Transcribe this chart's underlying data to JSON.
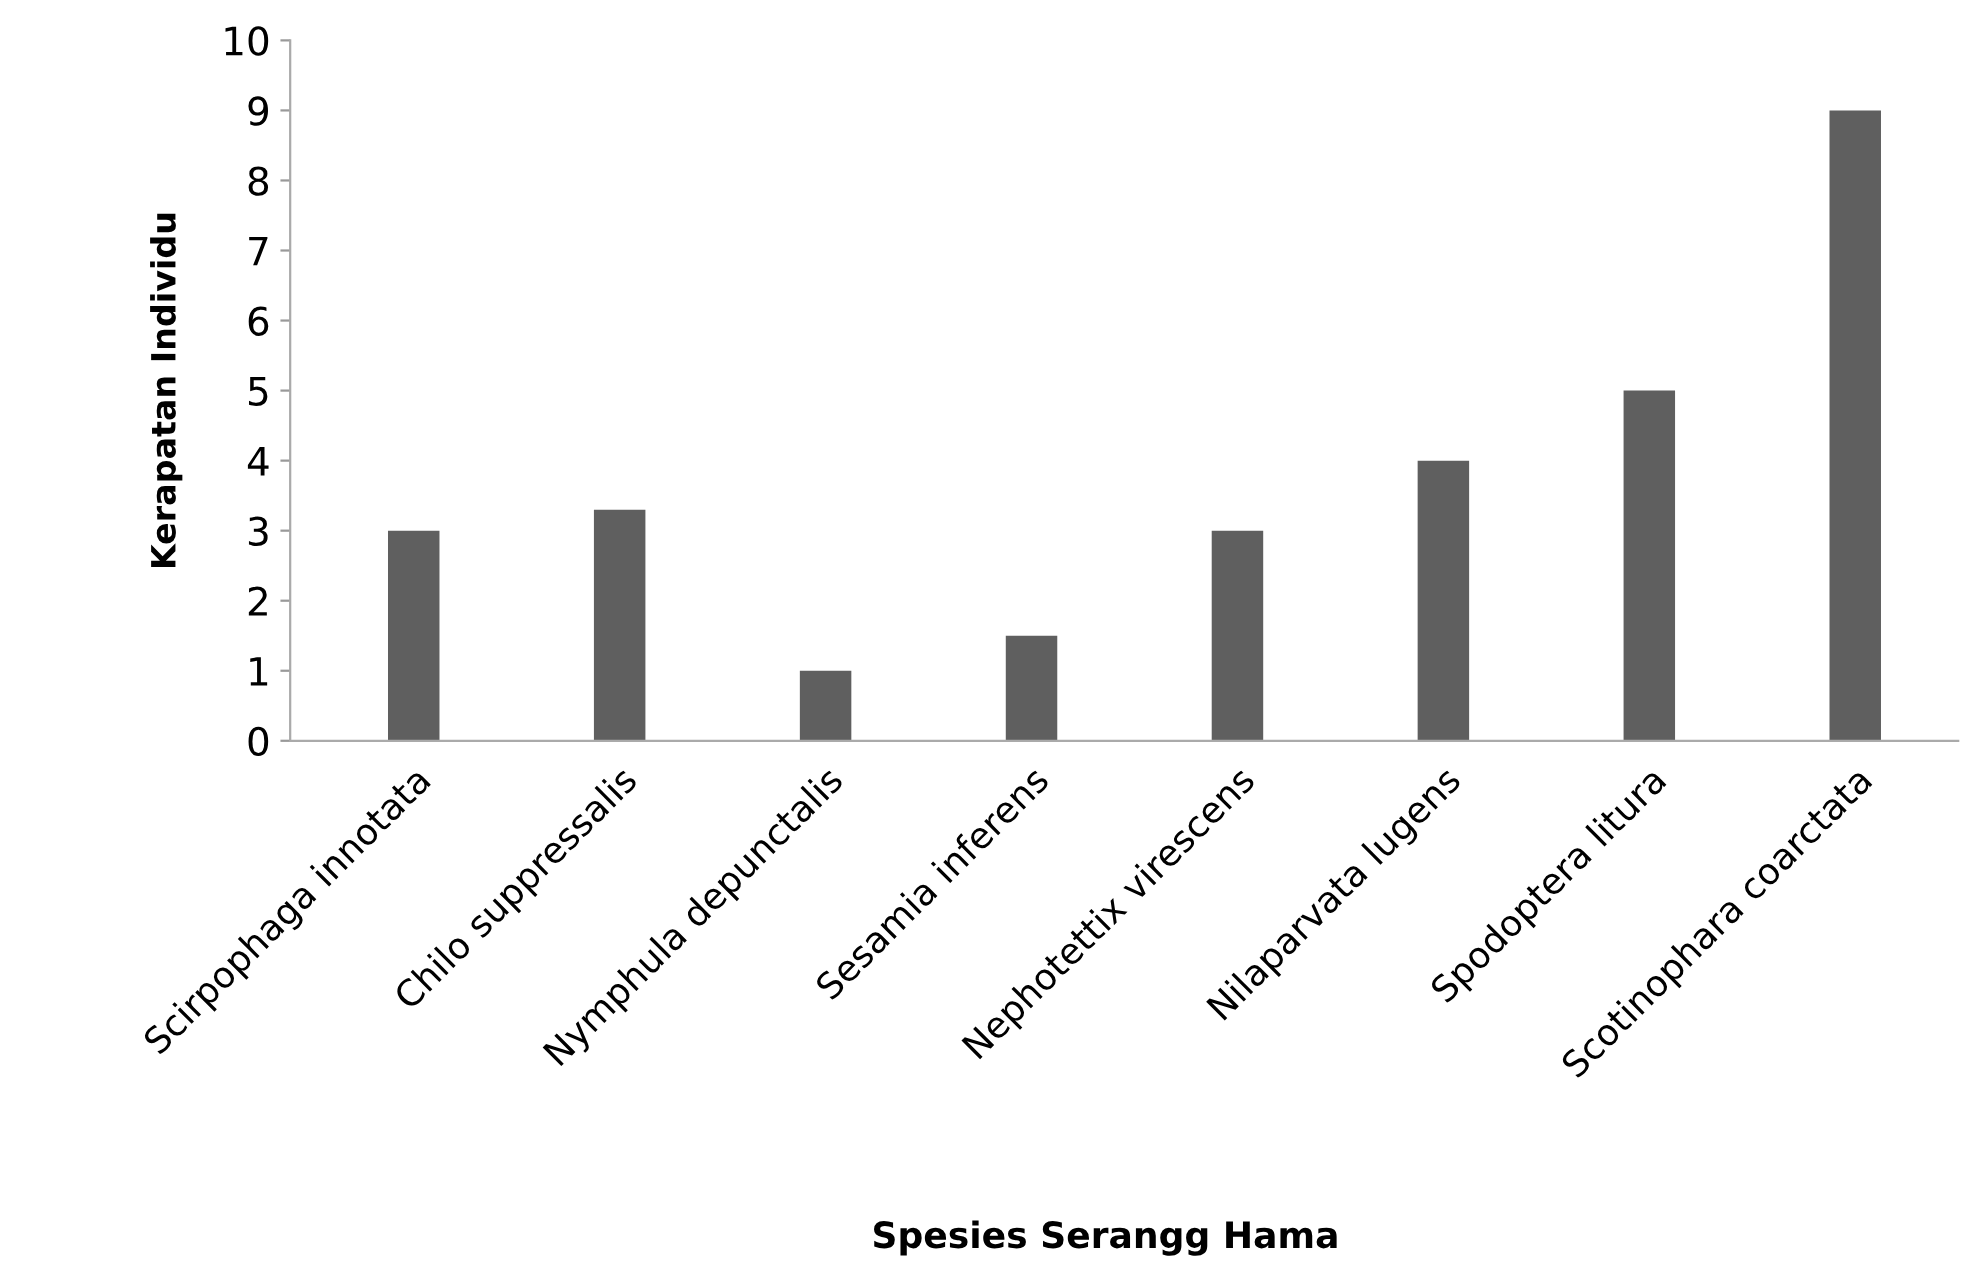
{
  "chart_data": {
    "type": "bar",
    "xlabel": "Spesies Serangg Hama",
    "ylabel": "Kerapatan Individu",
    "categories": [
      "Scirpophaga innotata",
      "Chilo suppressalis",
      "Nymphula depunctalis",
      "Sesamia inferens",
      "Nephotettix virescens",
      "Nilaparvata lugens",
      "Spodoptera litura",
      "Scotinophara coarctata"
    ],
    "values": [
      3,
      3.3,
      1,
      1.5,
      3,
      4,
      5,
      9
    ],
    "color": "#5f5f5f",
    "ylim": [
      0,
      10
    ],
    "yticks": [
      0,
      1,
      2,
      3,
      4,
      5,
      6,
      7,
      8,
      9,
      10
    ],
    "grid": false,
    "legend": false
  }
}
